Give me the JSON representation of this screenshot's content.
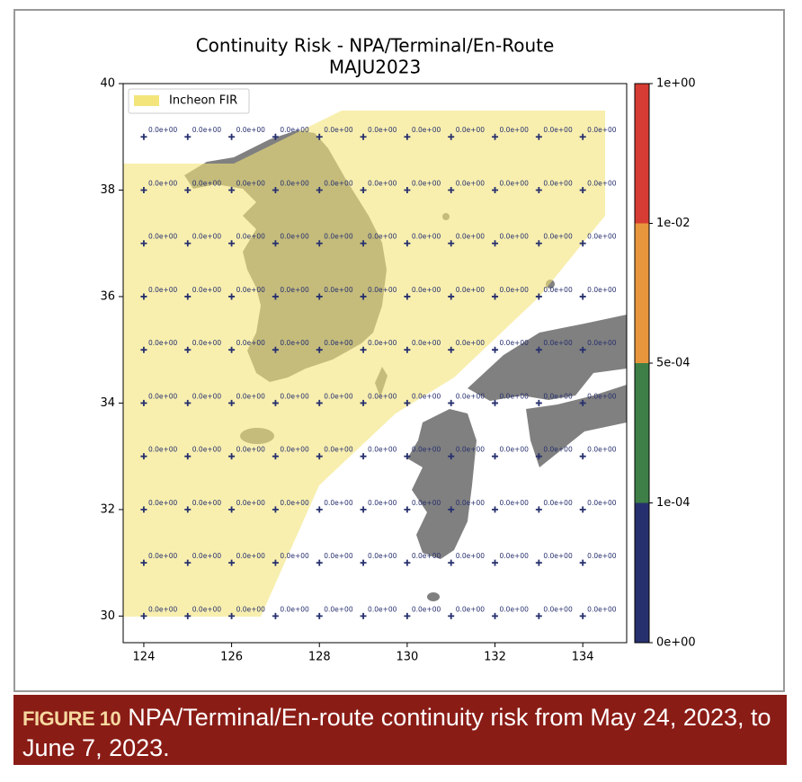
{
  "chart_data": {
    "type": "scatter",
    "title": "Continuity Risk - NPA/Terminal/En-Route",
    "subtitle": "MAJU2023",
    "legend": "Incheon FIR",
    "legend_corner": "upper left",
    "fir_color": "#f3e57a",
    "land_color": "#808080",
    "x": [
      124,
      125,
      126,
      127,
      128,
      129,
      130,
      131,
      132,
      133,
      134
    ],
    "y": [
      30,
      31,
      32,
      33,
      34,
      35,
      36,
      37,
      38,
      39
    ],
    "values": [
      [
        0,
        0,
        0,
        0,
        0,
        0,
        0,
        0,
        0,
        0,
        0
      ],
      [
        0,
        0,
        0,
        0,
        0,
        0,
        0,
        0,
        0,
        0,
        0
      ],
      [
        0,
        0,
        0,
        0,
        0,
        0,
        0,
        0,
        0,
        0,
        0
      ],
      [
        0,
        0,
        0,
        0,
        0,
        0,
        0,
        0,
        0,
        0,
        0
      ],
      [
        0,
        0,
        0,
        0,
        0,
        0,
        0,
        0,
        0,
        0,
        0
      ],
      [
        0,
        0,
        0,
        0,
        0,
        0,
        0,
        0,
        0,
        0,
        0
      ],
      [
        0,
        0,
        0,
        0,
        0,
        0,
        0,
        0,
        0,
        0,
        0
      ],
      [
        0,
        0,
        0,
        0,
        0,
        0,
        0,
        0,
        0,
        0,
        0
      ],
      [
        0,
        0,
        0,
        0,
        0,
        0,
        0,
        0,
        0,
        0,
        0
      ],
      [
        0,
        0,
        0,
        0,
        0,
        0,
        0,
        0,
        0,
        0,
        0
      ]
    ],
    "value_labels": [
      [
        "0.0e+00",
        "0.0e+00",
        "0.0e+00",
        "0.0e+00",
        "0.0e+00",
        "0.0e+00",
        "0.0e+00",
        "0.0e+00",
        "0.0e+00",
        "0.0e+00",
        "0.0e+00"
      ],
      [
        "0.0e+00",
        "0.0e+00",
        "0.0e+00",
        "0.0e+00",
        "0.0e+00",
        "0.0e+00",
        "0.0e+00",
        "0.0e+00",
        "0.0e+00",
        "0.0e+00",
        "0.0e+00"
      ],
      [
        "0.0e+00",
        "0.0e+00",
        "0.0e+00",
        "0.0e+00",
        "0.0e+00",
        "0.0e+00",
        "0.0e+00",
        "0.0e+00",
        "0.0e+00",
        "0.0e+00",
        "0.0e+00"
      ],
      [
        "0.0e+00",
        "0.0e+00",
        "0.0e+00",
        "0.0e+00",
        "0.0e+00",
        "0.0e+00",
        "0.0e+00",
        "0.0e+00",
        "0.0e+00",
        "0.0e+00",
        "0.0e+00"
      ],
      [
        "0.0e+00",
        "0.0e+00",
        "0.0e+00",
        "0.0e+00",
        "0.0e+00",
        "0.0e+00",
        "0.0e+00",
        "0.0e+00",
        "0.0e+00",
        "0.0e+00",
        "0.0e+00"
      ],
      [
        "0.0e+00",
        "0.0e+00",
        "0.0e+00",
        "0.0e+00",
        "0.0e+00",
        "0.0e+00",
        "0.0e+00",
        "0.0e+00",
        "0.0e+00",
        "0.0e+00",
        "0.0e+00"
      ],
      [
        "0.0e+00",
        "0.0e+00",
        "0.0e+00",
        "0.0e+00",
        "0.0e+00",
        "0.0e+00",
        "0.0e+00",
        "0.0e+00",
        "0.0e+00",
        "0.0e+00",
        "0.0e+00"
      ],
      [
        "0.0e+00",
        "0.0e+00",
        "0.0e+00",
        "0.0e+00",
        "0.0e+00",
        "0.0e+00",
        "0.0e+00",
        "0.0e+00",
        "0.0e+00",
        "0.0e+00",
        "0.0e+00"
      ],
      [
        "0.0e+00",
        "0.0e+00",
        "0.0e+00",
        "0.0e+00",
        "0.0e+00",
        "0.0e+00",
        "0.0e+00",
        "0.0e+00",
        "0.0e+00",
        "0.0e+00",
        "0.0e+00"
      ],
      [
        "0.0e+00",
        "0.0e+00",
        "0.0e+00",
        "0.0e+00",
        "0.0e+00",
        "0.0e+00",
        "0.0e+00",
        "0.0e+00",
        "0.0e+00",
        "0.0e+00",
        "0.0e+00"
      ]
    ],
    "xlim": [
      123.53,
      135
    ],
    "ylim": [
      29.5,
      40
    ],
    "xticks": [
      124,
      126,
      128,
      130,
      132,
      134
    ],
    "yticks": [
      30,
      32,
      34,
      36,
      38,
      40
    ],
    "colorbar": {
      "bounds": [
        0,
        0.0001,
        0.0005,
        0.01,
        1
      ],
      "colors": [
        "#27306e",
        "#3d7f47",
        "#e8963d",
        "#d63c34"
      ],
      "ticks": [
        {
          "value": 0,
          "label": "0e+00"
        },
        {
          "value": 0.0001,
          "label": "1e-04"
        },
        {
          "value": 0.0005,
          "label": "5e-04"
        },
        {
          "value": 0.01,
          "label": "1e-02"
        },
        {
          "value": 1,
          "label": "1e+00"
        }
      ]
    }
  },
  "caption": {
    "label": "FIGURE 10",
    "text": "NPA/Terminal/En-route continuity risk from May 24, 2023, to June 7, 2023."
  }
}
